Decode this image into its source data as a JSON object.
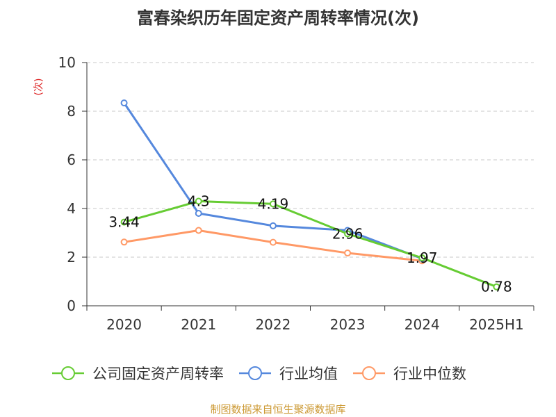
{
  "chart_data": {
    "type": "line",
    "title": "富春染织历年固定资产周转率情况(次)",
    "ylabel": "(次)",
    "xlabel": "",
    "categories": [
      "2020",
      "2021",
      "2022",
      "2023",
      "2024",
      "2025H1"
    ],
    "ylim": [
      0,
      10
    ],
    "yticks": [
      0,
      2,
      4,
      6,
      8,
      10
    ],
    "grid": true,
    "legend_position": "bottom",
    "series": [
      {
        "name": "公司固定资产周转率",
        "values": [
          3.44,
          4.3,
          4.19,
          2.96,
          1.97,
          0.78
        ],
        "data_labels": [
          "3.44",
          "4.3",
          "4.19",
          "2.96",
          "1.97",
          "0.78"
        ],
        "color": "#66cc33"
      },
      {
        "name": "行业均值",
        "values": [
          8.34,
          3.8,
          3.29,
          3.1,
          1.94,
          null
        ],
        "color": "#5588dd"
      },
      {
        "name": "行业中位数",
        "values": [
          2.62,
          3.1,
          2.61,
          2.17,
          1.85,
          null
        ],
        "color": "#ff9966"
      }
    ],
    "source": "制图数据来自恒生聚源数据库"
  }
}
